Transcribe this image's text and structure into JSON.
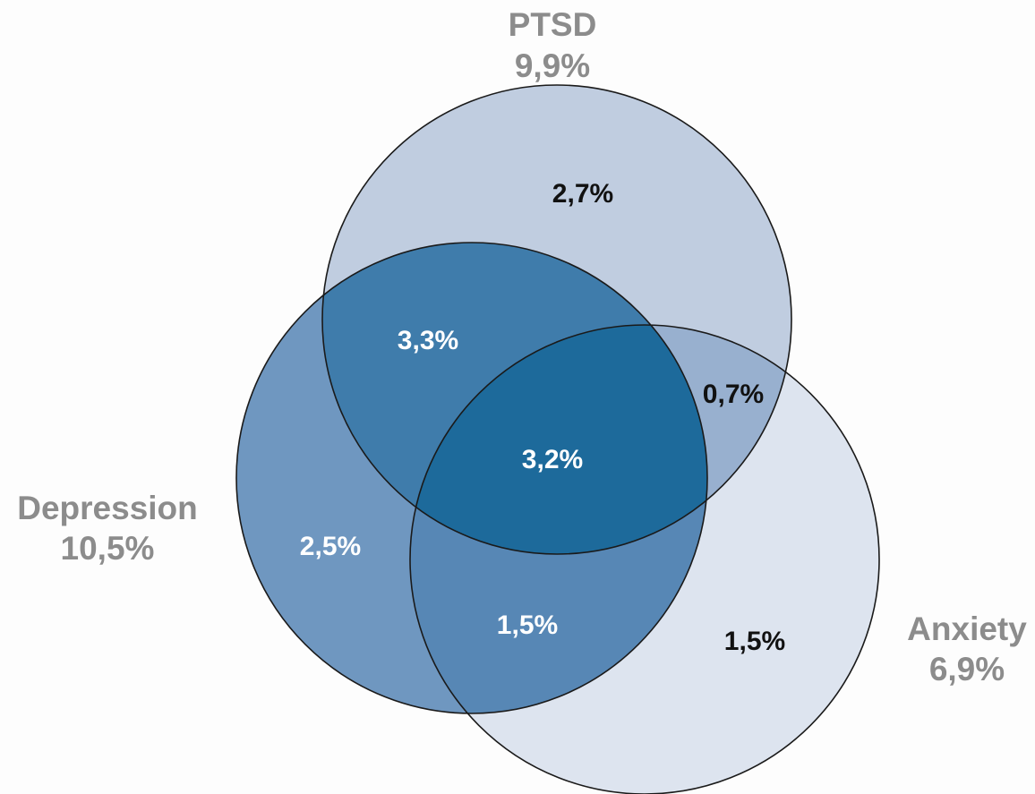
{
  "sets": [
    {
      "name": "PTSD",
      "total": "9,9%"
    },
    {
      "name": "Depression",
      "total": "10,5%"
    },
    {
      "name": "Anxiety",
      "total": "6,9%"
    }
  ],
  "regions": [
    {
      "label": "2,7%"
    },
    {
      "label": "3,3%"
    },
    {
      "label": "0,7%"
    },
    {
      "label": "3,2%"
    },
    {
      "label": "2,5%"
    },
    {
      "label": "1,5%"
    },
    {
      "label": "1,5%"
    }
  ]
}
